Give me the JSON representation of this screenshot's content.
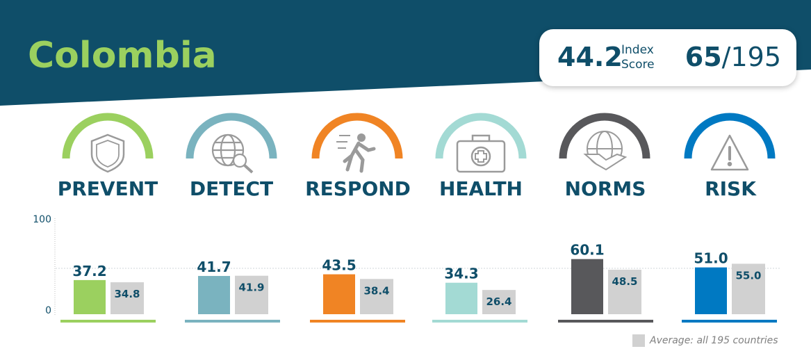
{
  "header": {
    "country": "Colombia",
    "index_score": "44.2",
    "index_label_1": "Index",
    "index_label_2": "Score",
    "rank": "65",
    "rank_total": "/195"
  },
  "colors": {
    "banner": "#0f4e69",
    "title": "#9bd05f",
    "avg_bar": "#d1d1d1",
    "categories": [
      "#9bd05f",
      "#7ab3bf",
      "#f08424",
      "#a3dad4",
      "#58585b",
      "#0079c2"
    ]
  },
  "categories": [
    {
      "label": "PREVENT",
      "icon": "shield-icon"
    },
    {
      "label": "DETECT",
      "icon": "globe-magnifier-icon"
    },
    {
      "label": "RESPOND",
      "icon": "running-person-icon"
    },
    {
      "label": "HEALTH",
      "icon": "medical-kit-icon"
    },
    {
      "label": "NORMS",
      "icon": "handshake-icon"
    },
    {
      "label": "RISK",
      "icon": "warning-icon"
    }
  ],
  "chart_data": {
    "type": "bar",
    "categories": [
      "PREVENT",
      "DETECT",
      "RESPOND",
      "HEALTH",
      "NORMS",
      "RISK"
    ],
    "series": [
      {
        "name": "Colombia",
        "values": [
          37.2,
          41.7,
          43.5,
          34.3,
          60.1,
          51.0
        ]
      },
      {
        "name": "Average: all 195 countries",
        "values": [
          34.8,
          41.9,
          38.4,
          26.4,
          48.5,
          55.0
        ]
      }
    ],
    "value_labels": {
      "country": [
        "37.2",
        "41.7",
        "43.5",
        "34.3",
        "60.1",
        "51.0"
      ],
      "average": [
        "34.8",
        "41.9",
        "38.4",
        "26.4",
        "48.5",
        "55.0"
      ]
    },
    "ylim": [
      0,
      100
    ],
    "yticks": [
      "0",
      "100"
    ],
    "reference_line": 50,
    "legend": {
      "label": "Average: all 195 countries",
      "placement": "bottom-right"
    }
  }
}
